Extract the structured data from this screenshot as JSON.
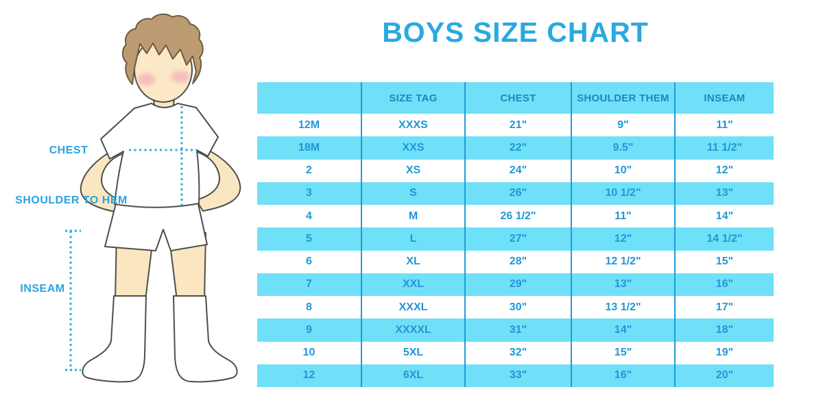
{
  "title": "BOYS SIZE CHART",
  "colors": {
    "title": "#29A9E1",
    "stripe": "#6FE0F8",
    "separator": "#1E9CD6",
    "header_text": "#2384BA",
    "cell_text": "#2196D6",
    "label_text": "#29A3E0",
    "dotted_line": "#29ABE2",
    "skin": "#FAE6C0",
    "hair": "#BD9B72",
    "outline": "#4D4D4D"
  },
  "diagram": {
    "labels": {
      "chest": "CHEST",
      "shoulder_to_hem": "SHOULDER TO HEM",
      "inseam": "INSEAM"
    }
  },
  "chart_data": {
    "type": "table",
    "title": "BOYS SIZE CHART",
    "columns": [
      "",
      "SIZE TAG",
      "CHEST",
      "SHOULDER THEM",
      "INSEAM"
    ],
    "rows": [
      [
        "12M",
        "XXXS",
        "21\"",
        "9\"",
        "11\""
      ],
      [
        "18M",
        "XXS",
        "22\"",
        "9.5\"",
        "11 1/2\""
      ],
      [
        "2",
        "XS",
        "24\"",
        "10\"",
        "12\""
      ],
      [
        "3",
        "S",
        "26\"",
        "10 1/2\"",
        "13\""
      ],
      [
        "4",
        "M",
        "26 1/2\"",
        "11\"",
        "14\""
      ],
      [
        "5",
        "L",
        "27\"",
        "12\"",
        "14 1/2\""
      ],
      [
        "6",
        "XL",
        "28\"",
        "12 1/2\"",
        "15\""
      ],
      [
        "7",
        "XXL",
        "29\"",
        "13\"",
        "16\""
      ],
      [
        "8",
        "XXXL",
        "30\"",
        "13 1/2\"",
        "17\""
      ],
      [
        "9",
        "XXXXL",
        "31\"",
        "14\"",
        "18\""
      ],
      [
        "10",
        "5XL",
        "32\"",
        "15\"",
        "19\""
      ],
      [
        "12",
        "6XL",
        "33\"",
        "16\"",
        "20\""
      ]
    ]
  }
}
